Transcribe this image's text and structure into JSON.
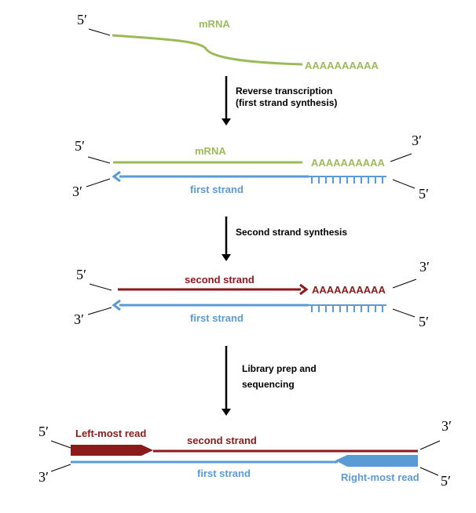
{
  "colors": {
    "mrna": "#9bbb59",
    "first": "#5a9bd5",
    "second": "#8b1a1a",
    "arrow": "#000000"
  },
  "ends": {
    "five": "5′",
    "three": "3′"
  },
  "stage1": {
    "mrna_label": "mRNA",
    "polyA": "AAAAAAAAAA"
  },
  "step1": {
    "line1": "Reverse transcription",
    "line2": "(first strand synthesis)"
  },
  "stage2": {
    "mrna_label": "mRNA",
    "polyA": "AAAAAAAAAA",
    "first_label": "first strand",
    "polyT": "TTTTTTTTTT"
  },
  "step2": {
    "line1": "Second strand synthesis"
  },
  "stage3": {
    "second_label": "second strand",
    "polyA": "AAAAAAAAAA",
    "first_label": "first strand",
    "polyT": "TTTTTTTTTT"
  },
  "step3": {
    "line1": "Library prep and",
    "line2": "sequencing"
  },
  "stage4": {
    "left_read": "Left-most read",
    "second_label": "second strand",
    "first_label": "first strand",
    "right_read": "Right-most read"
  }
}
